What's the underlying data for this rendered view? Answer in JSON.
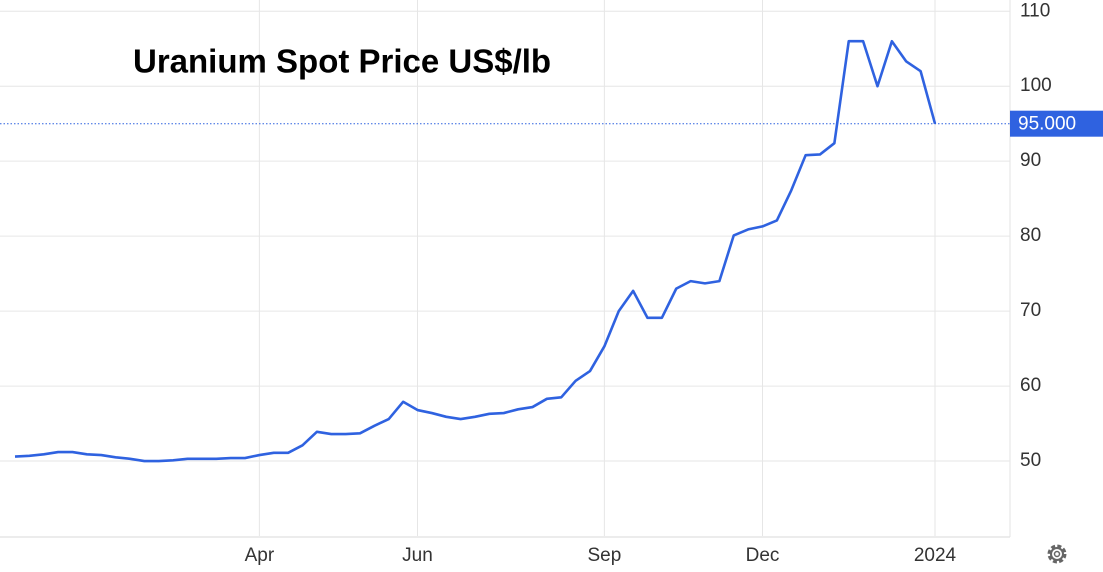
{
  "chart_data": {
    "type": "line",
    "title": "Uranium Spot Price US$/lb",
    "categories": [
      null,
      null,
      null,
      null,
      null,
      null,
      null,
      null,
      null,
      null,
      null,
      null,
      null,
      null,
      null,
      null,
      null,
      "Apr",
      null,
      null,
      null,
      null,
      null,
      null,
      null,
      null,
      null,
      null,
      "Jun",
      null,
      null,
      null,
      null,
      null,
      null,
      null,
      null,
      null,
      null,
      null,
      null,
      "Sep",
      null,
      null,
      null,
      null,
      null,
      null,
      null,
      null,
      null,
      null,
      "Dec",
      null,
      null,
      null,
      null,
      null,
      null,
      null,
      null,
      null,
      null,
      null,
      "2024"
    ],
    "series": [
      {
        "name": "Uranium",
        "color": "#2f62e0",
        "values": [
          50.6,
          50.7,
          50.9,
          51.2,
          51.2,
          50.9,
          50.8,
          50.5,
          50.3,
          50.0,
          50.0,
          50.1,
          50.3,
          50.3,
          50.3,
          50.4,
          50.4,
          50.8,
          51.1,
          51.1,
          52.1,
          53.9,
          53.6,
          53.6,
          53.7,
          54.7,
          55.6,
          57.9,
          56.8,
          56.4,
          55.9,
          55.6,
          55.9,
          56.3,
          56.4,
          56.9,
          57.2,
          58.3,
          58.5,
          60.7,
          62.0,
          65.3,
          70.0,
          72.7,
          69.1,
          69.1,
          73.0,
          74.0,
          73.7,
          74.0,
          80.1,
          80.9,
          81.3,
          82.1,
          86.1,
          90.8,
          90.9,
          92.4,
          106,
          106,
          100,
          106,
          103.3,
          102,
          95
        ]
      }
    ],
    "last_label": "95.000",
    "ylim": [
      40,
      111.5
    ],
    "yticks": [
      50,
      60,
      70,
      80,
      90,
      100,
      110
    ],
    "grid": true
  }
}
